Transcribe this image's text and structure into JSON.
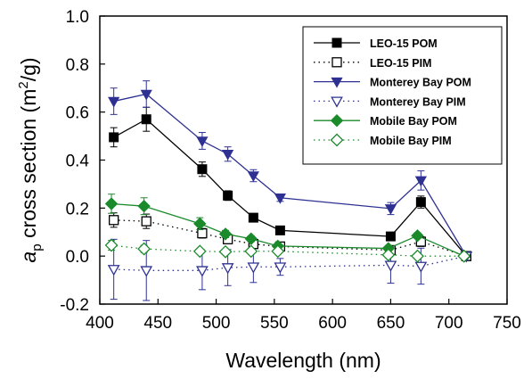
{
  "chart_data": {
    "type": "line",
    "title": "",
    "xlabel": "Wavelength (nm)",
    "ylabel": {
      "prefix": "a",
      "subscript": "p",
      "middle": " cross section (m",
      "superscript": "2",
      "suffix": "/g)"
    },
    "xlim": [
      400,
      750
    ],
    "ylim": [
      -0.2,
      1.0
    ],
    "xticks": [
      "400",
      "450",
      "500",
      "550",
      "600",
      "650",
      "700",
      "750"
    ],
    "yticks": [
      "-0.2",
      "0.0",
      "0.2",
      "0.4",
      "0.6",
      "0.8",
      "1.0"
    ],
    "legend_position": "top-right",
    "grid": false,
    "series": [
      {
        "name": "LEO-15 POM",
        "color": "#000000",
        "line": "solid",
        "marker": "square",
        "fill": "filled",
        "x": [
          412,
          440,
          488,
          510,
          532,
          555,
          650,
          676,
          715
        ],
        "y": [
          0.495,
          0.57,
          0.362,
          0.252,
          0.16,
          0.107,
          0.082,
          0.225,
          0.0
        ],
        "err": [
          0.04,
          0.05,
          0.03,
          0.02,
          0.015,
          0.01,
          0.01,
          0.025,
          0.005
        ]
      },
      {
        "name": "LEO-15 PIM",
        "color": "#000000",
        "line": "dotted",
        "marker": "square",
        "fill": "open",
        "x": [
          412,
          440,
          488,
          510,
          532,
          555,
          650,
          676,
          715
        ],
        "y": [
          0.15,
          0.145,
          0.095,
          0.07,
          0.05,
          0.04,
          0.025,
          0.06,
          0.0
        ],
        "err": [
          0.03,
          0.03,
          0.02,
          0.015,
          0.01,
          0.008,
          0.008,
          0.02,
          0.005
        ]
      },
      {
        "name": "Monterey Bay POM",
        "color": "#2e3192",
        "line": "solid",
        "marker": "triangle-down",
        "fill": "filled",
        "x": [
          412,
          440,
          488,
          510,
          532,
          555,
          650,
          676,
          715
        ],
        "y": [
          0.645,
          0.675,
          0.48,
          0.425,
          0.335,
          0.243,
          0.198,
          0.315,
          0.0
        ],
        "err": [
          0.055,
          0.055,
          0.035,
          0.03,
          0.025,
          0.015,
          0.025,
          0.04,
          0.005
        ]
      },
      {
        "name": "Monterey Bay PIM",
        "color": "#2e3192",
        "line": "dotted",
        "marker": "triangle-down",
        "fill": "open",
        "x": [
          412,
          440,
          488,
          510,
          532,
          555,
          650,
          676,
          715
        ],
        "y": [
          -0.055,
          -0.06,
          -0.06,
          -0.048,
          -0.045,
          -0.045,
          -0.038,
          -0.042,
          0.0
        ],
        "err": [
          0.125,
          0.125,
          0.08,
          0.075,
          0.065,
          0.035,
          0.075,
          0.075,
          0.005
        ]
      },
      {
        "name": "Mobile Bay POM",
        "color": "#1a8a2a",
        "line": "solid",
        "marker": "diamond",
        "fill": "filled",
        "x": [
          410,
          438,
          486,
          508,
          530,
          553,
          648,
          673,
          713
        ],
        "y": [
          0.218,
          0.208,
          0.135,
          0.092,
          0.072,
          0.042,
          0.032,
          0.085,
          0.0
        ],
        "err": [
          0.04,
          0.035,
          0.025,
          0.015,
          0.012,
          0.01,
          0.008,
          0.012,
          0.005
        ]
      },
      {
        "name": "Mobile Bay PIM",
        "color": "#1a8a2a",
        "line": "dotted",
        "marker": "diamond",
        "fill": "open",
        "x": [
          410,
          438,
          486,
          508,
          530,
          553,
          648,
          673,
          713
        ],
        "y": [
          0.045,
          0.03,
          0.02,
          0.018,
          0.02,
          0.02,
          0.005,
          0.0,
          0.0
        ],
        "err": [
          0.02,
          0.015,
          0.01,
          0.008,
          0.008,
          0.008,
          0.006,
          0.006,
          0.004
        ]
      }
    ]
  }
}
